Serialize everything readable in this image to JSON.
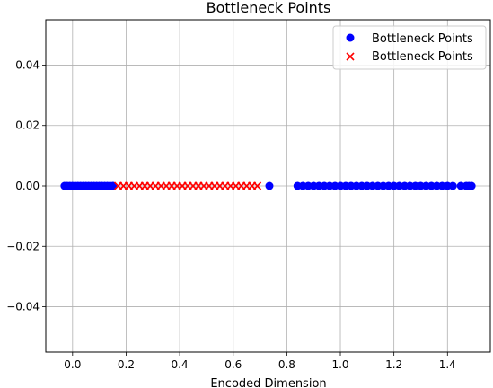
{
  "chart_data": {
    "type": "scatter",
    "title": "Bottleneck Points",
    "xlabel": "Encoded Dimension",
    "ylabel": "",
    "xlim": [
      -0.1,
      1.56
    ],
    "ylim": [
      -0.055,
      0.055
    ],
    "x_ticks": [
      0.0,
      0.2,
      0.4,
      0.6,
      0.8,
      1.0,
      1.2,
      1.4
    ],
    "x_tick_labels": [
      "0.0",
      "0.2",
      "0.4",
      "0.6",
      "0.8",
      "1.0",
      "1.2",
      "1.4"
    ],
    "y_ticks": [
      -0.04,
      -0.02,
      0.0,
      0.02,
      0.04
    ],
    "y_tick_labels": [
      "−0.04",
      "−0.02",
      "0.00",
      "0.02",
      "0.04"
    ],
    "grid": true,
    "legend_position": "top-right",
    "series": [
      {
        "name": "Bottleneck Points",
        "marker": "circle",
        "color": "#0000ff",
        "x": [
          -0.03,
          -0.02,
          -0.01,
          0.0,
          0.01,
          0.02,
          0.03,
          0.04,
          0.05,
          0.06,
          0.07,
          0.08,
          0.09,
          0.1,
          0.11,
          0.12,
          0.13,
          0.14,
          0.15,
          0.735,
          0.84,
          0.86,
          0.88,
          0.9,
          0.92,
          0.94,
          0.96,
          0.98,
          1.0,
          1.02,
          1.04,
          1.06,
          1.08,
          1.1,
          1.12,
          1.14,
          1.16,
          1.18,
          1.2,
          1.22,
          1.24,
          1.26,
          1.28,
          1.3,
          1.32,
          1.34,
          1.36,
          1.38,
          1.4,
          1.42,
          1.45,
          1.47,
          1.48,
          1.49
        ],
        "y": [
          0,
          0,
          0,
          0,
          0,
          0,
          0,
          0,
          0,
          0,
          0,
          0,
          0,
          0,
          0,
          0,
          0,
          0,
          0,
          0,
          0,
          0,
          0,
          0,
          0,
          0,
          0,
          0,
          0,
          0,
          0,
          0,
          0,
          0,
          0,
          0,
          0,
          0,
          0,
          0,
          0,
          0,
          0,
          0,
          0,
          0,
          0,
          0,
          0,
          0,
          0,
          0,
          0,
          0
        ]
      },
      {
        "name": "Bottleneck Points",
        "marker": "x",
        "color": "#ff0000",
        "x": [
          0.17,
          0.19,
          0.21,
          0.23,
          0.25,
          0.27,
          0.29,
          0.31,
          0.33,
          0.35,
          0.37,
          0.39,
          0.41,
          0.43,
          0.45,
          0.47,
          0.49,
          0.51,
          0.53,
          0.55,
          0.57,
          0.59,
          0.61,
          0.63,
          0.65,
          0.67,
          0.69
        ],
        "y": [
          0,
          0,
          0,
          0,
          0,
          0,
          0,
          0,
          0,
          0,
          0,
          0,
          0,
          0,
          0,
          0,
          0,
          0,
          0,
          0,
          0,
          0,
          0,
          0,
          0,
          0,
          0
        ]
      }
    ]
  }
}
